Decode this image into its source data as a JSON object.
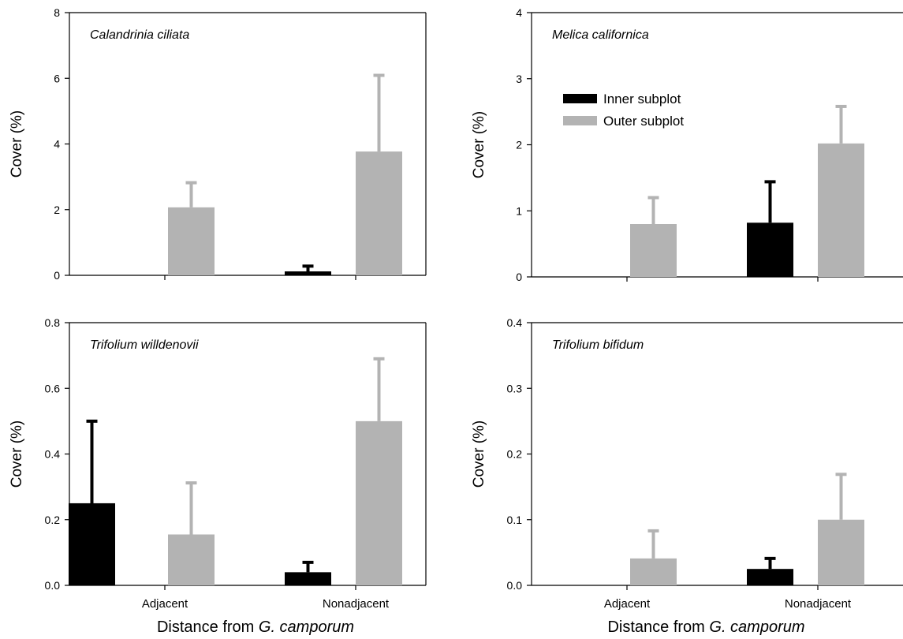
{
  "chart_data": [
    {
      "type": "bar",
      "title": "Calandrinia ciliata",
      "ylabel": "Cover (%)",
      "xlabel": "",
      "categories": [
        "Adjacent",
        "Nonadjacent"
      ],
      "ylim": [
        0,
        8
      ],
      "yticks": [
        "0",
        "2",
        "4",
        "6",
        "8"
      ],
      "series": [
        {
          "name": "Inner subplot",
          "values": [
            0,
            0.12
          ],
          "errors": [
            0,
            0.16
          ]
        },
        {
          "name": "Outer subplot",
          "values": [
            2.07,
            3.77
          ],
          "errors": [
            0.75,
            2.32
          ]
        }
      ]
    },
    {
      "type": "bar",
      "title": "Melica californica",
      "ylabel": "Cover (%)",
      "xlabel": "",
      "categories": [
        "Adjacent",
        "Nonadjacent"
      ],
      "ylim": [
        0,
        4
      ],
      "yticks": [
        "0",
        "1",
        "2",
        "3",
        "4"
      ],
      "legend": "upper-left",
      "series": [
        {
          "name": "Inner subplot",
          "values": [
            0,
            0.82
          ],
          "errors": [
            0,
            0.62
          ]
        },
        {
          "name": "Outer subplot",
          "values": [
            0.8,
            2.02
          ],
          "errors": [
            0.4,
            0.56
          ]
        }
      ]
    },
    {
      "type": "bar",
      "title": "Trifolium willdenovii",
      "ylabel": "Cover (%)",
      "xlabel": "Distance from G. camporum",
      "categories": [
        "Adjacent",
        "Nonadjacent"
      ],
      "ylim": [
        0,
        0.8
      ],
      "yticks": [
        "0.0",
        "0.2",
        "0.4",
        "0.6",
        "0.8"
      ],
      "series": [
        {
          "name": "Inner subplot",
          "values": [
            0.25,
            0.04
          ],
          "errors": [
            0.25,
            0.03
          ]
        },
        {
          "name": "Outer subplot",
          "values": [
            0.155,
            0.5
          ],
          "errors": [
            0.157,
            0.19
          ]
        }
      ]
    },
    {
      "type": "bar",
      "title": "Trifolium bifidum",
      "ylabel": "Cover (%)",
      "xlabel": "Distance from G. camporum",
      "categories": [
        "Adjacent",
        "Nonadjacent"
      ],
      "ylim": [
        0,
        0.4
      ],
      "yticks": [
        "0.0",
        "0.1",
        "0.2",
        "0.3",
        "0.4"
      ],
      "series": [
        {
          "name": "Inner subplot",
          "values": [
            0,
            0.025
          ],
          "errors": [
            0,
            0.016
          ]
        },
        {
          "name": "Outer subplot",
          "values": [
            0.041,
            0.1
          ],
          "errors": [
            0.042,
            0.069
          ]
        }
      ]
    }
  ],
  "colors": {
    "inner": "#000000",
    "outer": "#b3b3b3",
    "axis": "#000000"
  }
}
